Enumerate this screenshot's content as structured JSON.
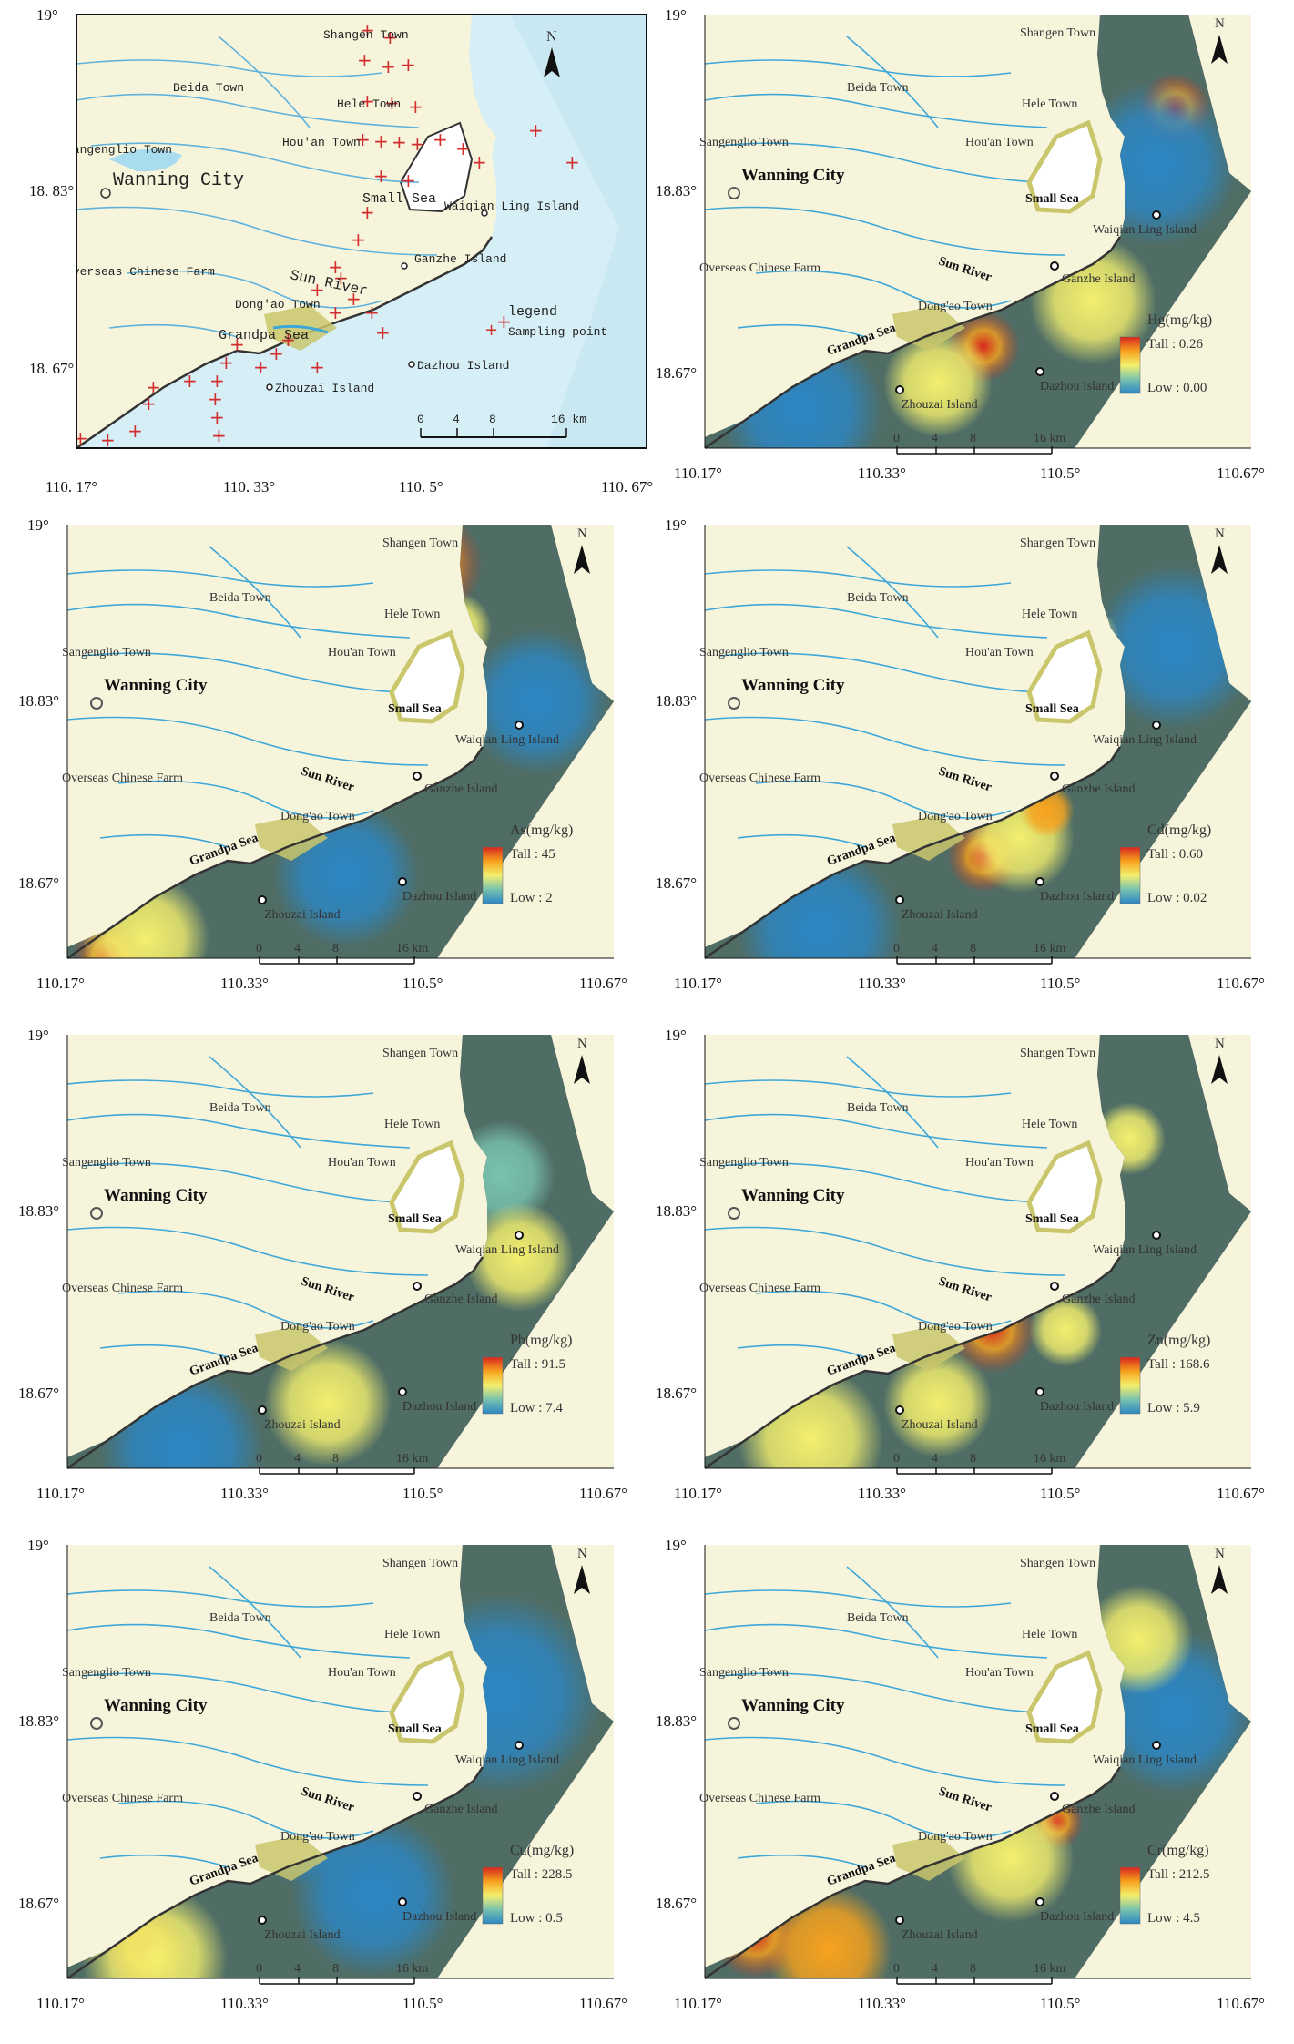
{
  "axes": {
    "x_ticks": [
      "110.17°",
      "110.33°",
      "110.5°",
      "110.67°"
    ],
    "y_ticks": [
      "19°",
      "18.83°",
      "18.67°"
    ],
    "x_ticks_first_panel": [
      "110. 17°",
      "110. 33°",
      "110. 5°",
      "110. 67°"
    ],
    "y_ticks_first_panel": [
      "19°",
      "18. 83°",
      "18. 67°"
    ]
  },
  "places": {
    "shangen": "Shangen Town",
    "beida": "Beida Town",
    "hele": "Hele Town",
    "houan": "Hou'an Town",
    "sangenglio": "Sangenglio Town",
    "wanning": "Wanning City",
    "small_sea": "Small Sea",
    "waiqian": "Waiqian Ling Island",
    "ganzhe": "Ganzhe Island",
    "overseas": "Overseas Chinese Farm",
    "sun_river": "Sun River",
    "dongao": "Dong'ao Town",
    "grandpa": "Grandpa Sea",
    "zhouzai": "Zhouzai Island",
    "dazhou": "Dazhou Island"
  },
  "north": "N",
  "scalebar": {
    "ticks": [
      "0",
      "4",
      "8"
    ],
    "end": "16 km"
  },
  "sampling_legend": {
    "title": "legend",
    "item": "Sampling point"
  },
  "maps": [
    {
      "element": "Hg(mg/kg)",
      "high": "Tall : 0.26",
      "low": "Low : 0.00"
    },
    {
      "element": "As(mg/kg)",
      "high": "Tall : 45",
      "low": "Low : 2"
    },
    {
      "element": "Cd(mg/kg)",
      "high": "Tall : 0.60",
      "low": "Low : 0.02"
    },
    {
      "element": "Pb(mg/kg)",
      "high": "Tall : 91.5",
      "low": "Low : 7.4"
    },
    {
      "element": "Zn(mg/kg)",
      "high": "Tall : 168.6",
      "low": "Low : 5.9"
    },
    {
      "element": "Cu(mg/kg)",
      "high": "Tall : 228.5",
      "low": "Low : 0.5"
    },
    {
      "element": "Cr(mg/kg)",
      "high": "Tall : 212.5",
      "low": "Low : 4.5"
    }
  ],
  "colors": {
    "land": "#f7f4dc",
    "sea": "#d6eef6",
    "river": "#3da7d9",
    "wetland": "#c9c66c",
    "sample": "#d22d2d",
    "ramp": [
      "#d7261e",
      "#f7a21d",
      "#f3ef6e",
      "#79c2ae",
      "#2c86c4"
    ]
  }
}
